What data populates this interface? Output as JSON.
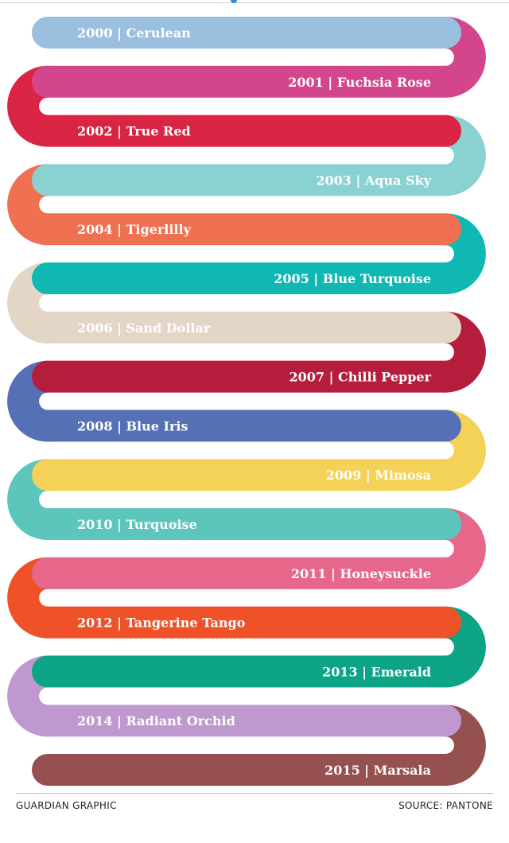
{
  "colors": [
    {
      "year": "2000",
      "name": "Cerulean",
      "hex": "#9bbfdf",
      "text_color": "#ffffff"
    },
    {
      "year": "2001",
      "name": "Fuchsia Rose",
      "hex": "#d4468b",
      "text_color": "#ffffff"
    },
    {
      "year": "2002",
      "name": "True Red",
      "hex": "#d92443",
      "text_color": "#ffffff"
    },
    {
      "year": "2003",
      "name": "Aqua Sky",
      "hex": "#8ad2d2",
      "text_color": "#ffffff"
    },
    {
      "year": "2004",
      "name": "Tigerlilly",
      "hex": "#f07052",
      "text_color": "#ffffff"
    },
    {
      "year": "2005",
      "name": "Blue Turquoise",
      "hex": "#10b8b4",
      "text_color": "#ffffff"
    },
    {
      "year": "2006",
      "name": "Sand Dollar",
      "hex": "#e4d6c6",
      "text_color": "#ffffff"
    },
    {
      "year": "2007",
      "name": "Chilli Pepper",
      "hex": "#b41e3c",
      "text_color": "#ffffff"
    },
    {
      "year": "2008",
      "name": "Blue Iris",
      "hex": "#5670b5",
      "text_color": "#ffffff"
    },
    {
      "year": "2009",
      "name": "Mimosa",
      "hex": "#f4d157",
      "text_color": "#ffffff"
    },
    {
      "year": "2010",
      "name": "Turquoise",
      "hex": "#5cc6bd",
      "text_color": "#ffffff"
    },
    {
      "year": "2011",
      "name": "Honeysuckle",
      "hex": "#e6678a",
      "text_color": "#ffffff"
    },
    {
      "year": "2012",
      "name": "Tangerine Tango",
      "hex": "#ef5228",
      "text_color": "#ffffff"
    },
    {
      "year": "2013",
      "name": "Emerald",
      "hex": "#0ca484",
      "text_color": "#ffffff"
    },
    {
      "year": "2014",
      "name": "Radiant Orchid",
      "hex": "#be98cf",
      "text_color": "#ffffff"
    },
    {
      "year": "2015",
      "name": "Marsala",
      "hex": "#965050",
      "text_color": "#ffffff"
    }
  ],
  "label_separator": "|",
  "footer": {
    "credit": "GUARDIAN GRAPHIC",
    "source": "SOURCE: PANTONE"
  }
}
